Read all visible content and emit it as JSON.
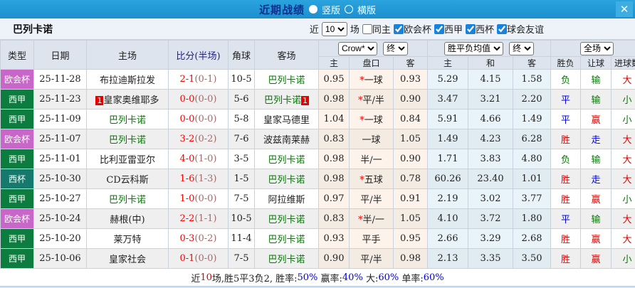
{
  "colors": {
    "accent_blue": "#2098d6",
    "title_text": "#122e90",
    "league_uecl": "#c966c9",
    "league_laliga": "#0d7c3f",
    "league_copa": "#15796e",
    "win_red": "#e10000",
    "draw_blue": "#0000e1",
    "loss_green": "#007a00"
  },
  "titlebar": {
    "title": "近期战绩",
    "radio_vertical": "竖版",
    "radio_horizontal": "横版",
    "selected": "竖版",
    "close_icon": "✕"
  },
  "filterbar": {
    "team": "巴列卡诺",
    "near_label": "近",
    "matches_value": "10",
    "matches_label": "场",
    "same_home_label": "同主",
    "same_home_checked": false,
    "leagues": [
      {
        "label": "欧会杯",
        "checked": true
      },
      {
        "label": "西甲",
        "checked": true
      },
      {
        "label": "西杯",
        "checked": true
      },
      {
        "label": "球会友谊",
        "checked": true
      }
    ]
  },
  "table": {
    "dropdowns": {
      "bookmaker": "Crow*",
      "asia_state": "终",
      "eu_type": "胜平负均值",
      "eu_state": "终",
      "period": "全场"
    },
    "headers": {
      "type": "类型",
      "date": "日期",
      "home": "主场",
      "score": "比分(半场)",
      "corner": "角球",
      "away": "客场",
      "asia_home": "主",
      "asia_line": "盘口",
      "asia_away": "客",
      "eu_home": "主",
      "eu_draw": "和",
      "eu_away": "客",
      "result": "胜负",
      "handicap": "让球",
      "goals": "进球数"
    },
    "rows": [
      {
        "league": {
          "label": "欧会杯",
          "color": "uecl"
        },
        "date": "25-11-28",
        "home": {
          "name": "布拉迪斯拉发",
          "green": false,
          "card": ""
        },
        "score": {
          "main": "2-1",
          "half": "(0-1)"
        },
        "corner": "10-5",
        "away": {
          "name": "巴列卡诺",
          "green": true,
          "card": ""
        },
        "asia": {
          "home": "0.95",
          "star": true,
          "line": "一球",
          "away": "0.93"
        },
        "eu": {
          "home": "5.29",
          "draw": "4.15",
          "away": "1.58"
        },
        "result": {
          "text": "负",
          "color": "green"
        },
        "handicap": {
          "text": "输",
          "color": "green"
        },
        "goals": {
          "text": "大",
          "color": "red"
        }
      },
      {
        "league": {
          "label": "西甲",
          "color": "laliga"
        },
        "date": "25-11-23",
        "home": {
          "name": "皇家奥维耶多",
          "green": false,
          "card": "1"
        },
        "score": {
          "main": "0-0",
          "half": "(0-0)"
        },
        "corner": "5-6",
        "away": {
          "name": "巴列卡诺",
          "green": true,
          "card": "1"
        },
        "asia": {
          "home": "0.98",
          "star": true,
          "line": "平/半",
          "away": "0.90"
        },
        "eu": {
          "home": "3.47",
          "draw": "3.21",
          "away": "2.20"
        },
        "result": {
          "text": "平",
          "color": "blue"
        },
        "handicap": {
          "text": "输",
          "color": "green"
        },
        "goals": {
          "text": "小",
          "color": "green"
        }
      },
      {
        "league": {
          "label": "西甲",
          "color": "laliga"
        },
        "date": "25-11-09",
        "home": {
          "name": "巴列卡诺",
          "green": true,
          "card": ""
        },
        "score": {
          "main": "0-0",
          "half": "(0-0)"
        },
        "corner": "5-8",
        "away": {
          "name": "皇家马德里",
          "green": false,
          "card": ""
        },
        "asia": {
          "home": "1.04",
          "star": true,
          "line": "一球",
          "away": "0.84"
        },
        "eu": {
          "home": "5.91",
          "draw": "4.66",
          "away": "1.49"
        },
        "result": {
          "text": "平",
          "color": "blue"
        },
        "handicap": {
          "text": "赢",
          "color": "red"
        },
        "goals": {
          "text": "小",
          "color": "green"
        }
      },
      {
        "league": {
          "label": "欧会杯",
          "color": "uecl"
        },
        "date": "25-11-07",
        "home": {
          "name": "巴列卡诺",
          "green": true,
          "card": ""
        },
        "score": {
          "main": "3-2",
          "half": "(0-2)"
        },
        "corner": "7-6",
        "away": {
          "name": "波兹南莱赫",
          "green": false,
          "card": ""
        },
        "asia": {
          "home": "0.83",
          "star": false,
          "line": "一球",
          "away": "1.05"
        },
        "eu": {
          "home": "1.49",
          "draw": "4.23",
          "away": "6.28"
        },
        "result": {
          "text": "胜",
          "color": "red"
        },
        "handicap": {
          "text": "走",
          "color": "blue"
        },
        "goals": {
          "text": "大",
          "color": "red"
        }
      },
      {
        "league": {
          "label": "西甲",
          "color": "laliga"
        },
        "date": "25-11-01",
        "home": {
          "name": "比利亚雷亚尔",
          "green": false,
          "card": ""
        },
        "score": {
          "main": "4-0",
          "half": "(1-0)"
        },
        "corner": "3-5",
        "away": {
          "name": "巴列卡诺",
          "green": true,
          "card": ""
        },
        "asia": {
          "home": "0.98",
          "star": false,
          "line": "半/一",
          "away": "0.90"
        },
        "eu": {
          "home": "1.71",
          "draw": "3.83",
          "away": "4.80"
        },
        "result": {
          "text": "负",
          "color": "green"
        },
        "handicap": {
          "text": "输",
          "color": "green"
        },
        "goals": {
          "text": "大",
          "color": "red"
        }
      },
      {
        "league": {
          "label": "西杯",
          "color": "copa"
        },
        "date": "25-10-30",
        "home": {
          "name": "CD云科斯",
          "green": false,
          "card": ""
        },
        "score": {
          "main": "1-6",
          "half": "(1-3)"
        },
        "corner": "1-5",
        "away": {
          "name": "巴列卡诺",
          "green": true,
          "card": ""
        },
        "asia": {
          "home": "0.98",
          "star": true,
          "line": "五球",
          "away": "0.78"
        },
        "eu": {
          "home": "60.26",
          "draw": "23.40",
          "away": "1.01"
        },
        "result": {
          "text": "胜",
          "color": "red"
        },
        "handicap": {
          "text": "走",
          "color": "blue"
        },
        "goals": {
          "text": "大",
          "color": "red"
        }
      },
      {
        "league": {
          "label": "西甲",
          "color": "laliga"
        },
        "date": "25-10-27",
        "home": {
          "name": "巴列卡诺",
          "green": true,
          "card": ""
        },
        "score": {
          "main": "1-0",
          "half": "(0-0)"
        },
        "corner": "7-5",
        "away": {
          "name": "阿拉维斯",
          "green": false,
          "card": ""
        },
        "asia": {
          "home": "0.97",
          "star": false,
          "line": "平/半",
          "away": "0.91"
        },
        "eu": {
          "home": "2.19",
          "draw": "3.02",
          "away": "3.77"
        },
        "result": {
          "text": "胜",
          "color": "red"
        },
        "handicap": {
          "text": "赢",
          "color": "red"
        },
        "goals": {
          "text": "小",
          "color": "green"
        }
      },
      {
        "league": {
          "label": "欧会杯",
          "color": "uecl"
        },
        "date": "25-10-24",
        "home": {
          "name": "赫根(中)",
          "green": false,
          "card": ""
        },
        "score": {
          "main": "2-2",
          "half": "(1-1)"
        },
        "corner": "10-5",
        "away": {
          "name": "巴列卡诺",
          "green": true,
          "card": ""
        },
        "asia": {
          "home": "0.83",
          "star": true,
          "line": "半/一",
          "away": "1.05"
        },
        "eu": {
          "home": "4.10",
          "draw": "3.72",
          "away": "1.80"
        },
        "result": {
          "text": "平",
          "color": "blue"
        },
        "handicap": {
          "text": "输",
          "color": "green"
        },
        "goals": {
          "text": "大",
          "color": "red"
        }
      },
      {
        "league": {
          "label": "西甲",
          "color": "laliga"
        },
        "date": "25-10-20",
        "home": {
          "name": "莱万特",
          "green": false,
          "card": ""
        },
        "score": {
          "main": "0-3",
          "half": "(0-2)"
        },
        "corner": "11-4",
        "away": {
          "name": "巴列卡诺",
          "green": true,
          "card": ""
        },
        "asia": {
          "home": "0.93",
          "star": false,
          "line": "平手",
          "away": "0.95"
        },
        "eu": {
          "home": "2.66",
          "draw": "3.29",
          "away": "2.68"
        },
        "result": {
          "text": "胜",
          "color": "red"
        },
        "handicap": {
          "text": "赢",
          "color": "red"
        },
        "goals": {
          "text": "大",
          "color": "red"
        }
      },
      {
        "league": {
          "label": "西甲",
          "color": "laliga"
        },
        "date": "25-10-06",
        "home": {
          "name": "皇家社会",
          "green": false,
          "card": ""
        },
        "score": {
          "main": "0-1",
          "half": "(0-0)"
        },
        "corner": "7-5",
        "away": {
          "name": "巴列卡诺",
          "green": true,
          "card": ""
        },
        "asia": {
          "home": "0.90",
          "star": false,
          "line": "平/半",
          "away": "0.98"
        },
        "eu": {
          "home": "2.13",
          "draw": "3.35",
          "away": "3.50"
        },
        "result": {
          "text": "胜",
          "color": "red"
        },
        "handicap": {
          "text": "赢",
          "color": "red"
        },
        "goals": {
          "text": "小",
          "color": "green"
        }
      }
    ]
  },
  "summary": {
    "segments": [
      {
        "text": "近",
        "color": "black"
      },
      {
        "text": "10",
        "color": "red"
      },
      {
        "text": "场,胜5平3负2, 胜率:",
        "color": "black"
      },
      {
        "text": "50%",
        "color": "blue"
      },
      {
        "text": " 赢率:",
        "color": "black"
      },
      {
        "text": "40%",
        "color": "blue"
      },
      {
        "text": " 大:",
        "color": "black"
      },
      {
        "text": "60%",
        "color": "blue"
      },
      {
        "text": " 单率:",
        "color": "black"
      },
      {
        "text": "60%",
        "color": "blue"
      }
    ]
  }
}
